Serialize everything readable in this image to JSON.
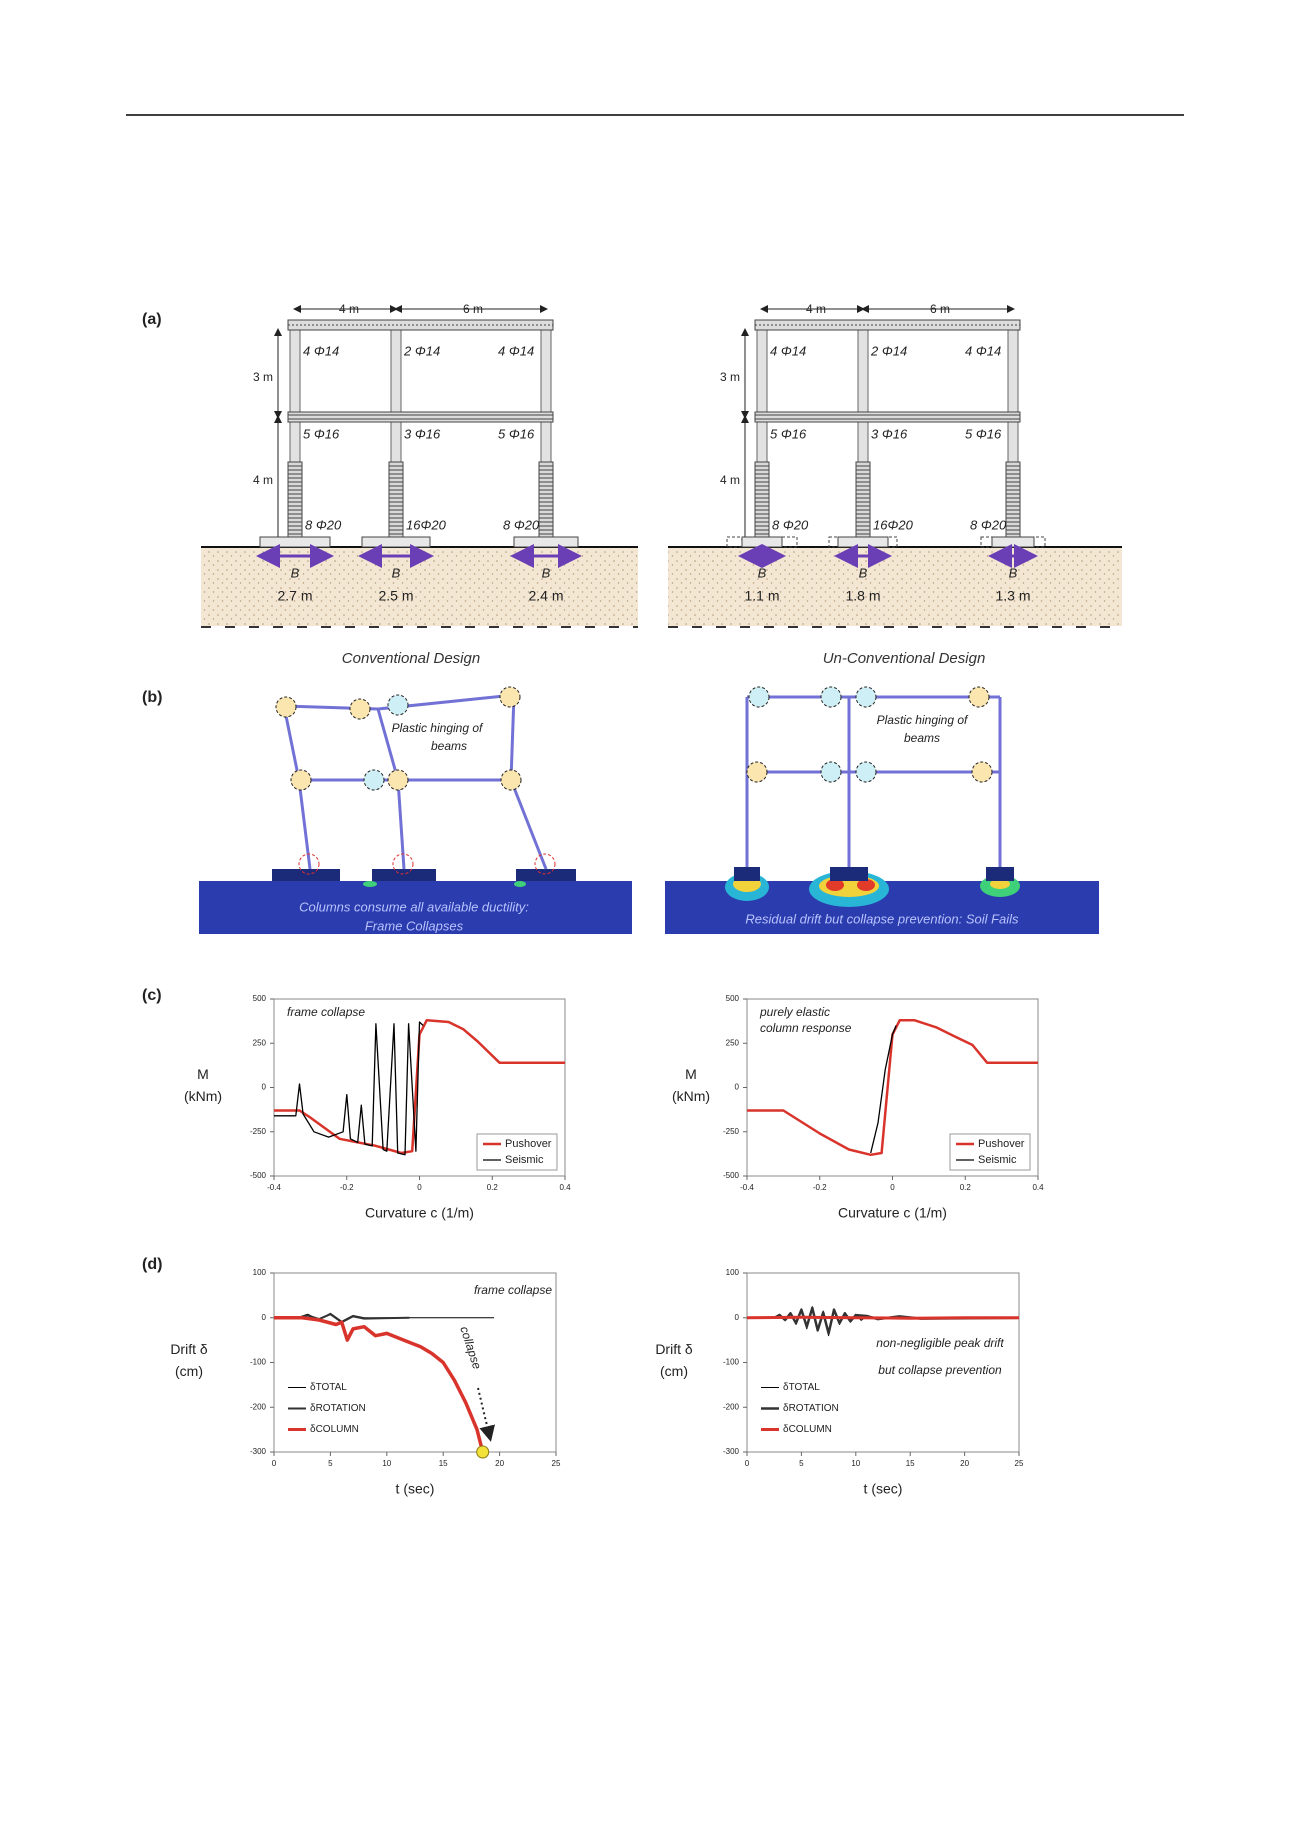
{
  "figure": {
    "panel_labels": [
      "(a)",
      "(b)",
      "(c)",
      "(d)"
    ],
    "panel_a": {
      "conventional": {
        "dimensions": {
          "bay_1": "4 m",
          "bay_2": "6 m",
          "storey_2": "3 m",
          "storey_1": "4 m"
        },
        "top_beam": [
          "4 Φ14",
          "2 Φ14",
          "4 Φ14"
        ],
        "mid_beam": [
          "5 Φ16",
          "3 Φ16",
          "5 Φ16"
        ],
        "columns": [
          "8 Φ20",
          "16Φ20",
          "8 Φ20"
        ],
        "footings": [
          {
            "label": "B",
            "width": "2.7 m"
          },
          {
            "label": "B",
            "width": "2.5 m"
          },
          {
            "label": "B",
            "width": "2.4 m"
          }
        ],
        "caption": "Conventional  Design"
      },
      "unconventional": {
        "dimensions": {
          "bay_1": "4 m",
          "bay_2": "6 m",
          "storey_2": "3 m",
          "storey_1": "4 m"
        },
        "top_beam": [
          "4 Φ14",
          "2 Φ14",
          "4 Φ14"
        ],
        "mid_beam": [
          "5 Φ16",
          "3 Φ16",
          "5 Φ16"
        ],
        "columns": [
          "8 Φ20",
          "16Φ20",
          "8 Φ20"
        ],
        "footings": [
          {
            "label": "B",
            "width": "1.1 m"
          },
          {
            "label": "B",
            "width": "1.8 m"
          },
          {
            "label": "B",
            "width": "1.3 m"
          }
        ],
        "caption": "Un-Conventional  Design"
      }
    },
    "panel_b": {
      "left": {
        "hinging": [
          "Plastic hinging of",
          "beams"
        ],
        "caption": [
          "Columns consume all available ductility:",
          "Frame Collapses"
        ]
      },
      "right": {
        "hinging": [
          "Plastic hinging of",
          "beams"
        ],
        "caption": [
          "Residual drift but collapse prevention: Soil Fails"
        ]
      }
    }
  },
  "chart_data": [
    {
      "type": "line",
      "xlabel": "Curvature c  (1/m)",
      "ylabel": [
        "M",
        "(kNm)"
      ],
      "annotations": [
        "frame collapse"
      ],
      "xlim": [
        -0.4,
        0.4
      ],
      "xticks": [
        -0.4,
        -0.2,
        0,
        0.2,
        0.4
      ],
      "ylim": [
        -500,
        500
      ],
      "yticks": [
        -500,
        -250,
        0,
        250,
        500
      ],
      "legend": "lower right",
      "legend_frame": true,
      "series": [
        {
          "name": "Pushover",
          "color": "#d9342b",
          "linewidth": 2.5,
          "x": [
            -0.4,
            -0.33,
            -0.3,
            -0.22,
            -0.12,
            -0.05,
            -0.02,
            0,
            0.02,
            0.08,
            0.12,
            0.16,
            0.22,
            0.4
          ],
          "values": [
            -130,
            -130,
            -170,
            -290,
            -330,
            -370,
            -360,
            300,
            380,
            370,
            330,
            260,
            140,
            140
          ]
        },
        {
          "name": "Seismic",
          "color": "#000000",
          "linewidth": 1.3,
          "x": [
            -0.4,
            -0.34,
            -0.33,
            -0.32,
            -0.29,
            -0.25,
            -0.21,
            -0.2,
            -0.19,
            -0.17,
            -0.16,
            -0.15,
            -0.13,
            -0.12,
            -0.1,
            -0.09,
            -0.07,
            -0.06,
            -0.04,
            -0.03,
            -0.01,
            0,
            0.01
          ],
          "values": [
            -160,
            -160,
            20,
            -150,
            -250,
            -280,
            -250,
            -40,
            -290,
            -310,
            -100,
            -320,
            -330,
            360,
            -350,
            -360,
            360,
            -370,
            -380,
            360,
            -360,
            370,
            350
          ]
        }
      ]
    },
    {
      "type": "line",
      "xlabel": "Curvature c  (1/m)",
      "ylabel": [
        "M",
        "(kNm)"
      ],
      "annotations": [
        "purely elastic",
        "column response"
      ],
      "xlim": [
        -0.4,
        0.4
      ],
      "xticks": [
        -0.4,
        -0.2,
        0,
        0.2,
        0.4
      ],
      "ylim": [
        -500,
        500
      ],
      "yticks": [
        -500,
        -250,
        0,
        250,
        500
      ],
      "legend": "lower right",
      "legend_frame": true,
      "series": [
        {
          "name": "Pushover",
          "color": "#d9342b",
          "linewidth": 2.5,
          "x": [
            -0.4,
            -0.3,
            -0.2,
            -0.12,
            -0.06,
            -0.03,
            0,
            0.02,
            0.06,
            0.12,
            0.17,
            0.22,
            0.26,
            0.4
          ],
          "values": [
            -130,
            -130,
            -260,
            -350,
            -380,
            -370,
            300,
            380,
            380,
            340,
            290,
            240,
            140,
            140
          ]
        },
        {
          "name": "Seismic",
          "color": "#000000",
          "linewidth": 1.3,
          "x": [
            -0.06,
            -0.04,
            -0.02,
            0,
            0.01
          ],
          "values": [
            -370,
            -200,
            100,
            300,
            350
          ]
        }
      ]
    },
    {
      "type": "line",
      "xlabel": "t (sec)",
      "ylabel": [
        "Drift δ",
        "(cm)"
      ],
      "annotations": [
        "frame collapse",
        "collapse"
      ],
      "xlim": [
        0,
        25
      ],
      "xticks": [
        0,
        5,
        10,
        15,
        20,
        25
      ],
      "ylim": [
        -300,
        100
      ],
      "yticks": [
        -300,
        -200,
        -100,
        0,
        100
      ],
      "legend": "lower left",
      "legend_frame": false,
      "series": [
        {
          "name": "δTOTAL",
          "color": "#000000",
          "linewidth": 1,
          "x": [
            0,
            2,
            3,
            4,
            5,
            6,
            7,
            8,
            10,
            15,
            19.5
          ],
          "values": [
            0,
            0,
            8,
            -5,
            10,
            -8,
            5,
            0,
            0,
            0,
            0
          ]
        },
        {
          "name": "δROTATION",
          "color": "#333333",
          "linewidth": 2,
          "x": [
            0,
            2,
            3,
            4,
            5,
            6,
            7,
            8,
            12
          ],
          "values": [
            0,
            0,
            5,
            -3,
            8,
            -10,
            3,
            -2,
            0
          ]
        },
        {
          "name": "δCOLUMN",
          "color": "#d9342b",
          "linewidth": 3.5,
          "x": [
            0,
            2.5,
            4,
            5.5,
            6,
            6.5,
            7,
            8,
            9,
            10,
            11,
            12,
            13,
            14,
            15,
            16,
            17,
            18,
            18.5
          ],
          "values": [
            0,
            0,
            -5,
            -15,
            -10,
            -50,
            -25,
            -20,
            -40,
            -35,
            -45,
            -55,
            -65,
            -80,
            -100,
            -140,
            -190,
            -250,
            -300
          ]
        }
      ]
    },
    {
      "type": "line",
      "xlabel": "t (sec)",
      "ylabel": [
        "Drift δ",
        "(cm)"
      ],
      "annotations": [
        "non-negligible peak drift",
        "but collapse prevention"
      ],
      "xlim": [
        0,
        25
      ],
      "xticks": [
        0,
        5,
        10,
        15,
        20,
        25
      ],
      "ylim": [
        -300,
        100
      ],
      "yticks": [
        -300,
        -200,
        -100,
        0,
        100
      ],
      "legend": "lower left",
      "legend_frame": false,
      "series": [
        {
          "name": "δTOTAL",
          "color": "#000000",
          "linewidth": 1,
          "x": [
            0,
            2.5,
            3,
            3.5,
            4,
            4.5,
            5,
            5.5,
            6,
            6.5,
            7,
            7.5,
            8,
            8.5,
            9,
            9.5,
            10,
            10.5,
            11,
            12,
            25
          ],
          "values": [
            0,
            0,
            8,
            -6,
            12,
            -15,
            20,
            -25,
            25,
            -30,
            15,
            -40,
            20,
            -15,
            12,
            -10,
            8,
            -6,
            4,
            0,
            0
          ]
        },
        {
          "name": "δROTATION",
          "color": "#333333",
          "linewidth": 2.5,
          "x": [
            0,
            2.5,
            3,
            3.5,
            4,
            4.5,
            5,
            5.5,
            6,
            6.5,
            7,
            7.5,
            8,
            8.5,
            9,
            9.5,
            10,
            11,
            12,
            14,
            16,
            25
          ],
          "values": [
            0,
            0,
            6,
            -5,
            10,
            -12,
            18,
            -20,
            22,
            -28,
            12,
            -35,
            18,
            -12,
            10,
            -8,
            6,
            4,
            -3,
            3,
            -2,
            0
          ]
        },
        {
          "name": "δCOLUMN",
          "color": "#d9342b",
          "linewidth": 3,
          "x": [
            0,
            5,
            10,
            15,
            20,
            25
          ],
          "values": [
            0,
            1,
            0,
            -1,
            0,
            0
          ]
        }
      ]
    }
  ]
}
